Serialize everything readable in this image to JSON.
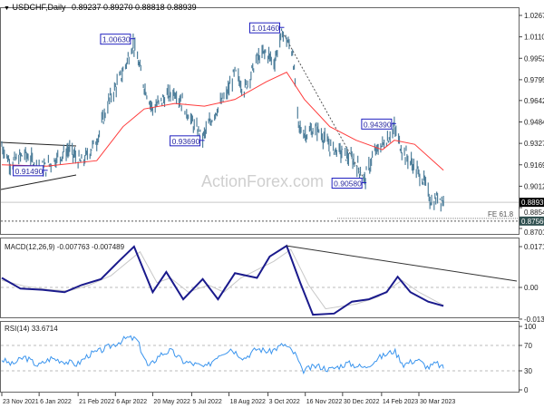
{
  "header": {
    "symbol": "USDCHF,Daily",
    "ohlc": "0.89237 0.89270 0.88818 0.88939"
  },
  "watermark": "ActionForex.com",
  "chart_data": [
    {
      "type": "line",
      "name_label": "USDCHF,Daily",
      "price_axis_ticks": [
        "1.02675",
        "1.01100",
        "0.99525",
        "0.97950",
        "0.96420",
        "0.94845",
        "0.93270",
        "0.91695",
        "0.90120",
        "0.88545",
        "0.87015"
      ],
      "current_price_tag": "0.88939",
      "target_price_tag": "0.87560",
      "target_label": "FE 61.8",
      "date_ticks": [
        {
          "label": "23 Nov 2021",
          "date": "2021-11-23"
        },
        {
          "label": "6 Jan 2022",
          "date": "2022-01-06"
        },
        {
          "label": "21 Feb 2022",
          "date": "2022-02-21"
        },
        {
          "label": "6 Apr 2022",
          "date": "2022-04-06"
        },
        {
          "label": "20 May 2022",
          "date": "2022-05-20"
        },
        {
          "label": "5 Jul 2022",
          "date": "2022-07-05"
        },
        {
          "label": "18 Aug 2022",
          "date": "2022-08-18"
        },
        {
          "label": "3 Oct 2022",
          "date": "2022-10-03"
        },
        {
          "label": "16 Nov 2022",
          "date": "2022-11-16"
        },
        {
          "label": "30 Dec 2022",
          "date": "2022-12-30"
        },
        {
          "label": "14 Feb 2023",
          "date": "2023-02-14"
        },
        {
          "label": "30 Mar 2023",
          "date": "2023-03-30"
        }
      ],
      "ylim": [
        0.8685,
        1.0325
      ],
      "price_close": [
        [
          "2021-11-23",
          0.931
        ],
        [
          "2021-12-03",
          0.918
        ],
        [
          "2021-12-20",
          0.925
        ],
        [
          "2022-01-05",
          0.916
        ],
        [
          "2022-01-14",
          0.9149
        ],
        [
          "2022-01-25",
          0.921
        ],
        [
          "2022-02-10",
          0.928
        ],
        [
          "2022-02-25",
          0.918
        ],
        [
          "2022-03-15",
          0.935
        ],
        [
          "2022-03-30",
          0.965
        ],
        [
          "2022-04-15",
          0.985
        ],
        [
          "2022-04-27",
          1.0063
        ],
        [
          "2022-05-10",
          0.975
        ],
        [
          "2022-05-20",
          0.958
        ],
        [
          "2022-06-01",
          0.965
        ],
        [
          "2022-06-15",
          0.971
        ],
        [
          "2022-06-25",
          0.962
        ],
        [
          "2022-07-08",
          0.945
        ],
        [
          "2022-07-18",
          0.9369
        ],
        [
          "2022-08-01",
          0.955
        ],
        [
          "2022-08-15",
          0.968
        ],
        [
          "2022-08-25",
          0.985
        ],
        [
          "2022-09-05",
          0.972
        ],
        [
          "2022-09-20",
          0.995
        ],
        [
          "2022-10-01",
          1.0
        ],
        [
          "2022-10-10",
          0.992
        ],
        [
          "2022-10-20",
          1.0146
        ],
        [
          "2022-11-01",
          1.0
        ],
        [
          "2022-11-08",
          0.945
        ],
        [
          "2022-11-15",
          0.94
        ],
        [
          "2022-12-01",
          0.943
        ],
        [
          "2022-12-15",
          0.93
        ],
        [
          "2023-01-01",
          0.925
        ],
        [
          "2023-01-15",
          0.918
        ],
        [
          "2023-01-25",
          0.9058
        ],
        [
          "2023-02-05",
          0.925
        ],
        [
          "2023-02-20",
          0.935
        ],
        [
          "2023-03-01",
          0.9439
        ],
        [
          "2023-03-10",
          0.928
        ],
        [
          "2023-03-25",
          0.915
        ],
        [
          "2023-04-05",
          0.905
        ],
        [
          "2023-04-15",
          0.887
        ],
        [
          "2023-04-22",
          0.895
        ],
        [
          "2023-04-28",
          0.8894
        ]
      ],
      "moving_average": [
        [
          "2021-11-23",
          0.917
        ],
        [
          "2022-01-15",
          0.916
        ],
        [
          "2022-03-15",
          0.92
        ],
        [
          "2022-04-15",
          0.945
        ],
        [
          "2022-05-10",
          0.958
        ],
        [
          "2022-06-15",
          0.962
        ],
        [
          "2022-07-20",
          0.96
        ],
        [
          "2022-08-25",
          0.965
        ],
        [
          "2022-10-01",
          0.978
        ],
        [
          "2022-10-25",
          0.985
        ],
        [
          "2022-11-15",
          0.965
        ],
        [
          "2022-12-15",
          0.945
        ],
        [
          "2023-01-15",
          0.935
        ],
        [
          "2023-02-15",
          0.928
        ],
        [
          "2023-03-01",
          0.935
        ],
        [
          "2023-03-25",
          0.932
        ],
        [
          "2023-04-28",
          0.913
        ]
      ],
      "annotations": [
        {
          "label": "1.00630",
          "date": "2022-04-27",
          "price": 1.0063
        },
        {
          "label": "0.93690",
          "date": "2022-07-18",
          "price": 0.9369
        },
        {
          "label": "1.01460",
          "date": "2022-10-20",
          "price": 1.0146
        },
        {
          "label": "0.94390",
          "date": "2023-03-01",
          "price": 0.9439
        },
        {
          "label": "0.90580",
          "date": "2023-01-25",
          "price": 0.9058
        },
        {
          "label": "0.91490",
          "date": "2022-01-14",
          "price": 0.9149
        }
      ],
      "colors": {
        "price": "#4f7f9b",
        "ma": "#ff3b3b",
        "label_border": "#2020c0",
        "label_text": "#2a2aa0"
      }
    },
    {
      "type": "line",
      "title": "MACD(12,26,9) -0.007763 -0.007489",
      "axis_ticks": [
        "0.017176",
        "0.00",
        "-0.01334"
      ],
      "ylim": [
        -0.01334,
        0.017176
      ],
      "macd": [
        [
          "2021-11-23",
          0.004
        ],
        [
          "2021-12-15",
          -0.0005
        ],
        [
          "2022-01-10",
          -0.001
        ],
        [
          "2022-02-05",
          -0.002
        ],
        [
          "2022-02-25",
          0.001
        ],
        [
          "2022-03-20",
          0.0035
        ],
        [
          "2022-04-10",
          0.011
        ],
        [
          "2022-04-28",
          0.0172
        ],
        [
          "2022-05-20",
          -0.002
        ],
        [
          "2022-06-05",
          0.0065
        ],
        [
          "2022-06-25",
          -0.005
        ],
        [
          "2022-07-18",
          0.0035
        ],
        [
          "2022-08-05",
          -0.005
        ],
        [
          "2022-08-25",
          0.006
        ],
        [
          "2022-09-20",
          0.004
        ],
        [
          "2022-10-05",
          0.013
        ],
        [
          "2022-10-25",
          0.0175
        ],
        [
          "2022-11-10",
          0.002
        ],
        [
          "2022-11-25",
          -0.0115
        ],
        [
          "2022-12-20",
          -0.011
        ],
        [
          "2023-01-10",
          -0.006
        ],
        [
          "2023-01-30",
          -0.005
        ],
        [
          "2023-02-20",
          -0.002
        ],
        [
          "2023-03-05",
          0.0045
        ],
        [
          "2023-03-20",
          -0.002
        ],
        [
          "2023-04-10",
          -0.006
        ],
        [
          "2023-04-28",
          -0.0078
        ]
      ],
      "signal": [
        [
          "2021-11-23",
          0.003
        ],
        [
          "2021-12-20",
          0.0005
        ],
        [
          "2022-01-15",
          -0.0008
        ],
        [
          "2022-02-10",
          -0.0015
        ],
        [
          "2022-03-05",
          0.0008
        ],
        [
          "2022-04-01",
          0.005
        ],
        [
          "2022-05-05",
          0.015
        ],
        [
          "2022-05-25",
          0.002
        ],
        [
          "2022-06-10",
          0.004
        ],
        [
          "2022-07-01",
          -0.002
        ],
        [
          "2022-07-25",
          0.001
        ],
        [
          "2022-08-12",
          -0.002
        ],
        [
          "2022-09-01",
          0.004
        ],
        [
          "2022-10-10",
          0.011
        ],
        [
          "2022-10-30",
          0.016
        ],
        [
          "2022-11-20",
          0.001
        ],
        [
          "2022-12-10",
          -0.009
        ],
        [
          "2023-01-15",
          -0.007
        ],
        [
          "2023-02-10",
          -0.004
        ],
        [
          "2023-03-10",
          0.003
        ],
        [
          "2023-03-30",
          -0.002
        ],
        [
          "2023-04-28",
          -0.0075
        ]
      ],
      "colors": {
        "macd": "#1a1a8c",
        "signal": "#c8c8c8",
        "trendline": "#333333"
      }
    },
    {
      "type": "line",
      "title": "RSI(14) 33.6714",
      "axis_ticks": [
        "100",
        "70",
        "30",
        "0"
      ],
      "levels": [
        70,
        30
      ],
      "ylim": [
        0,
        100
      ],
      "rsi": [
        [
          "2021-11-23",
          48
        ],
        [
          "2021-12-05",
          40
        ],
        [
          "2021-12-20",
          52
        ],
        [
          "2022-01-05",
          38
        ],
        [
          "2022-01-20",
          50
        ],
        [
          "2022-02-05",
          45
        ],
        [
          "2022-02-20",
          40
        ],
        [
          "2022-03-05",
          55
        ],
        [
          "2022-03-20",
          62
        ],
        [
          "2022-04-05",
          72
        ],
        [
          "2022-04-20",
          82
        ],
        [
          "2022-05-01",
          80
        ],
        [
          "2022-05-15",
          35
        ],
        [
          "2022-05-28",
          55
        ],
        [
          "2022-06-10",
          62
        ],
        [
          "2022-06-25",
          45
        ],
        [
          "2022-07-10",
          40
        ],
        [
          "2022-07-22",
          35
        ],
        [
          "2022-08-05",
          55
        ],
        [
          "2022-08-20",
          65
        ],
        [
          "2022-09-05",
          50
        ],
        [
          "2022-09-20",
          65
        ],
        [
          "2022-10-05",
          60
        ],
        [
          "2022-10-22",
          72
        ],
        [
          "2022-11-05",
          55
        ],
        [
          "2022-11-12",
          30
        ],
        [
          "2022-11-30",
          38
        ],
        [
          "2022-12-15",
          32
        ],
        [
          "2023-01-05",
          42
        ],
        [
          "2023-01-25",
          35
        ],
        [
          "2023-02-10",
          50
        ],
        [
          "2023-03-01",
          62
        ],
        [
          "2023-03-12",
          40
        ],
        [
          "2023-03-28",
          48
        ],
        [
          "2023-04-10",
          35
        ],
        [
          "2023-04-20",
          42
        ],
        [
          "2023-04-28",
          33.67
        ]
      ],
      "colors": {
        "rsi": "#3b95ee"
      }
    }
  ]
}
